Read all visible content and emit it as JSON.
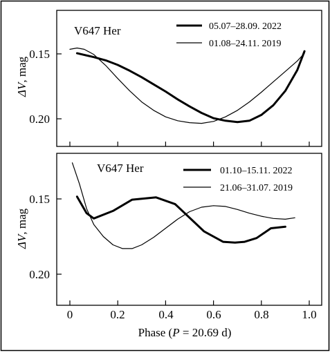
{
  "chart_data": [
    {
      "type": "line",
      "title": "",
      "star_label": "V647 Her",
      "xlabel": "",
      "ylabel_symbol": "ΔV",
      "ylabel_unit": ", mag",
      "xlim": [
        0.0,
        1.0
      ],
      "ylim": [
        0.125,
        0.225
      ],
      "y_inverted": true,
      "y_ticks": [
        "0.15",
        "0.20"
      ],
      "legend_position": "top-right",
      "grid": false,
      "series": [
        {
          "name": "05.07–28.09. 2022",
          "style": "thick",
          "x": [
            0.03,
            0.1,
            0.15,
            0.2,
            0.25,
            0.3,
            0.35,
            0.4,
            0.45,
            0.5,
            0.55,
            0.6,
            0.65,
            0.7,
            0.75,
            0.8,
            0.85,
            0.9,
            0.95,
            0.98
          ],
          "y": [
            0.1495,
            0.1525,
            0.155,
            0.1585,
            0.163,
            0.168,
            0.1735,
            0.179,
            0.185,
            0.1905,
            0.1955,
            0.1995,
            0.2015,
            0.2025,
            0.2015,
            0.197,
            0.1895,
            0.1785,
            0.1625,
            0.148
          ]
        },
        {
          "name": "01.08–24.11. 2019",
          "style": "thin",
          "x": [
            0.0,
            0.03,
            0.06,
            0.1,
            0.15,
            0.2,
            0.25,
            0.3,
            0.35,
            0.4,
            0.45,
            0.5,
            0.55,
            0.6,
            0.65,
            0.7,
            0.75,
            0.8,
            0.85,
            0.9,
            0.95,
            0.98
          ],
          "y": [
            0.1465,
            0.1455,
            0.1465,
            0.1505,
            0.159,
            0.169,
            0.1785,
            0.187,
            0.1935,
            0.1985,
            0.2015,
            0.203,
            0.2035,
            0.202,
            0.1985,
            0.1935,
            0.187,
            0.1795,
            0.1715,
            0.1635,
            0.1555,
            0.1495
          ]
        }
      ]
    },
    {
      "type": "line",
      "title": "",
      "star_label": "V647 Her",
      "xlabel": "Phase (P = 20.69 d)",
      "xlabel_parts": [
        "Phase (",
        "P",
        " = 20.69 d)"
      ],
      "ylabel_symbol": "ΔV",
      "ylabel_unit": ", mag",
      "xlim": [
        -0.05,
        1.05
      ],
      "ylim": [
        0.125,
        0.225
      ],
      "y_inverted": true,
      "x_ticks": [
        "0",
        "0.2",
        "0.4",
        "0.6",
        "0.8",
        "1.0"
      ],
      "y_ticks": [
        "0.15",
        "0.20"
      ],
      "legend_position": "top-right",
      "grid": false,
      "series": [
        {
          "name": "01.10–15.11. 2022",
          "style": "thick",
          "x": [
            0.03,
            0.07,
            0.1,
            0.18,
            0.26,
            0.36,
            0.44,
            0.56,
            0.64,
            0.69,
            0.73,
            0.78,
            0.84,
            0.9
          ],
          "y": [
            0.1485,
            0.1595,
            0.163,
            0.158,
            0.1505,
            0.149,
            0.1535,
            0.1715,
            0.1785,
            0.179,
            0.1785,
            0.176,
            0.1695,
            0.1685
          ]
        },
        {
          "name": "21.06–31.07. 2019",
          "style": "thin",
          "x": [
            0.01,
            0.04,
            0.07,
            0.1,
            0.14,
            0.18,
            0.22,
            0.26,
            0.3,
            0.35,
            0.4,
            0.45,
            0.5,
            0.55,
            0.6,
            0.65,
            0.7,
            0.75,
            0.8,
            0.85,
            0.9,
            0.94
          ],
          "y": [
            0.126,
            0.14,
            0.1565,
            0.167,
            0.175,
            0.1805,
            0.183,
            0.183,
            0.1805,
            0.1755,
            0.1695,
            0.1635,
            0.1585,
            0.1555,
            0.1545,
            0.155,
            0.157,
            0.1595,
            0.1615,
            0.163,
            0.1635,
            0.1625
          ]
        }
      ]
    }
  ]
}
